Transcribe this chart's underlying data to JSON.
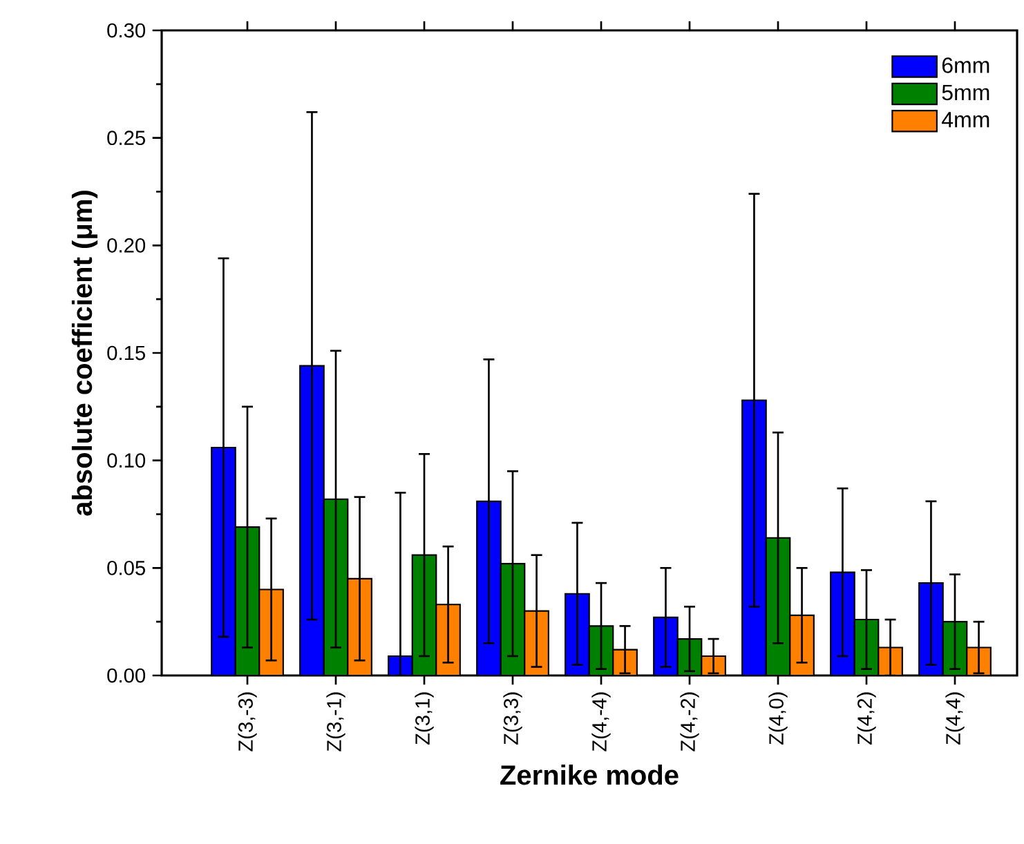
{
  "chart_data": {
    "type": "bar",
    "xlabel": "Zernike mode",
    "ylabel": "absolute coefficient (μm)",
    "categories": [
      "Z(3,-3)",
      "Z(3,-1)",
      "Z(3,1)",
      "Z(3,3)",
      "Z(4,-4)",
      "Z(4,-2)",
      "Z(4,0)",
      "Z(4,2)",
      "Z(4,4)"
    ],
    "series": [
      {
        "name": "6mm",
        "color": "#0000ff",
        "values": [
          0.106,
          0.144,
          0.009,
          0.081,
          0.038,
          0.027,
          0.128,
          0.048,
          0.043
        ],
        "errors": [
          0.088,
          0.118,
          [
            0,
            0.085
          ],
          0.066,
          0.033,
          0.023,
          0.096,
          0.039,
          0.038
        ]
      },
      {
        "name": "5mm",
        "color": "#008000",
        "values": [
          0.069,
          0.082,
          0.056,
          0.052,
          0.023,
          0.017,
          0.064,
          0.026,
          0.025
        ],
        "errors": [
          0.056,
          0.069,
          0.047,
          0.043,
          0.02,
          0.015,
          0.049,
          0.023,
          0.022
        ]
      },
      {
        "name": "4mm",
        "color": "#ff8000",
        "values": [
          0.04,
          0.045,
          0.033,
          0.03,
          0.012,
          0.009,
          0.028,
          0.013,
          0.013
        ],
        "errors": [
          0.033,
          0.038,
          0.027,
          0.026,
          0.011,
          0.008,
          0.022,
          0.013,
          0.012
        ]
      }
    ],
    "ylim": [
      0,
      0.3
    ],
    "yticks": [
      {
        "value": 0,
        "label": "0.00"
      },
      {
        "value": 0.05,
        "label": "0.05"
      },
      {
        "value": 0.1,
        "label": "0.10"
      },
      {
        "value": 0.15,
        "label": "0.15"
      },
      {
        "value": 0.2,
        "label": "0.20"
      },
      {
        "value": 0.25,
        "label": "0.25"
      },
      {
        "value": 0.3,
        "label": "0.30"
      }
    ],
    "legend": "top right"
  }
}
